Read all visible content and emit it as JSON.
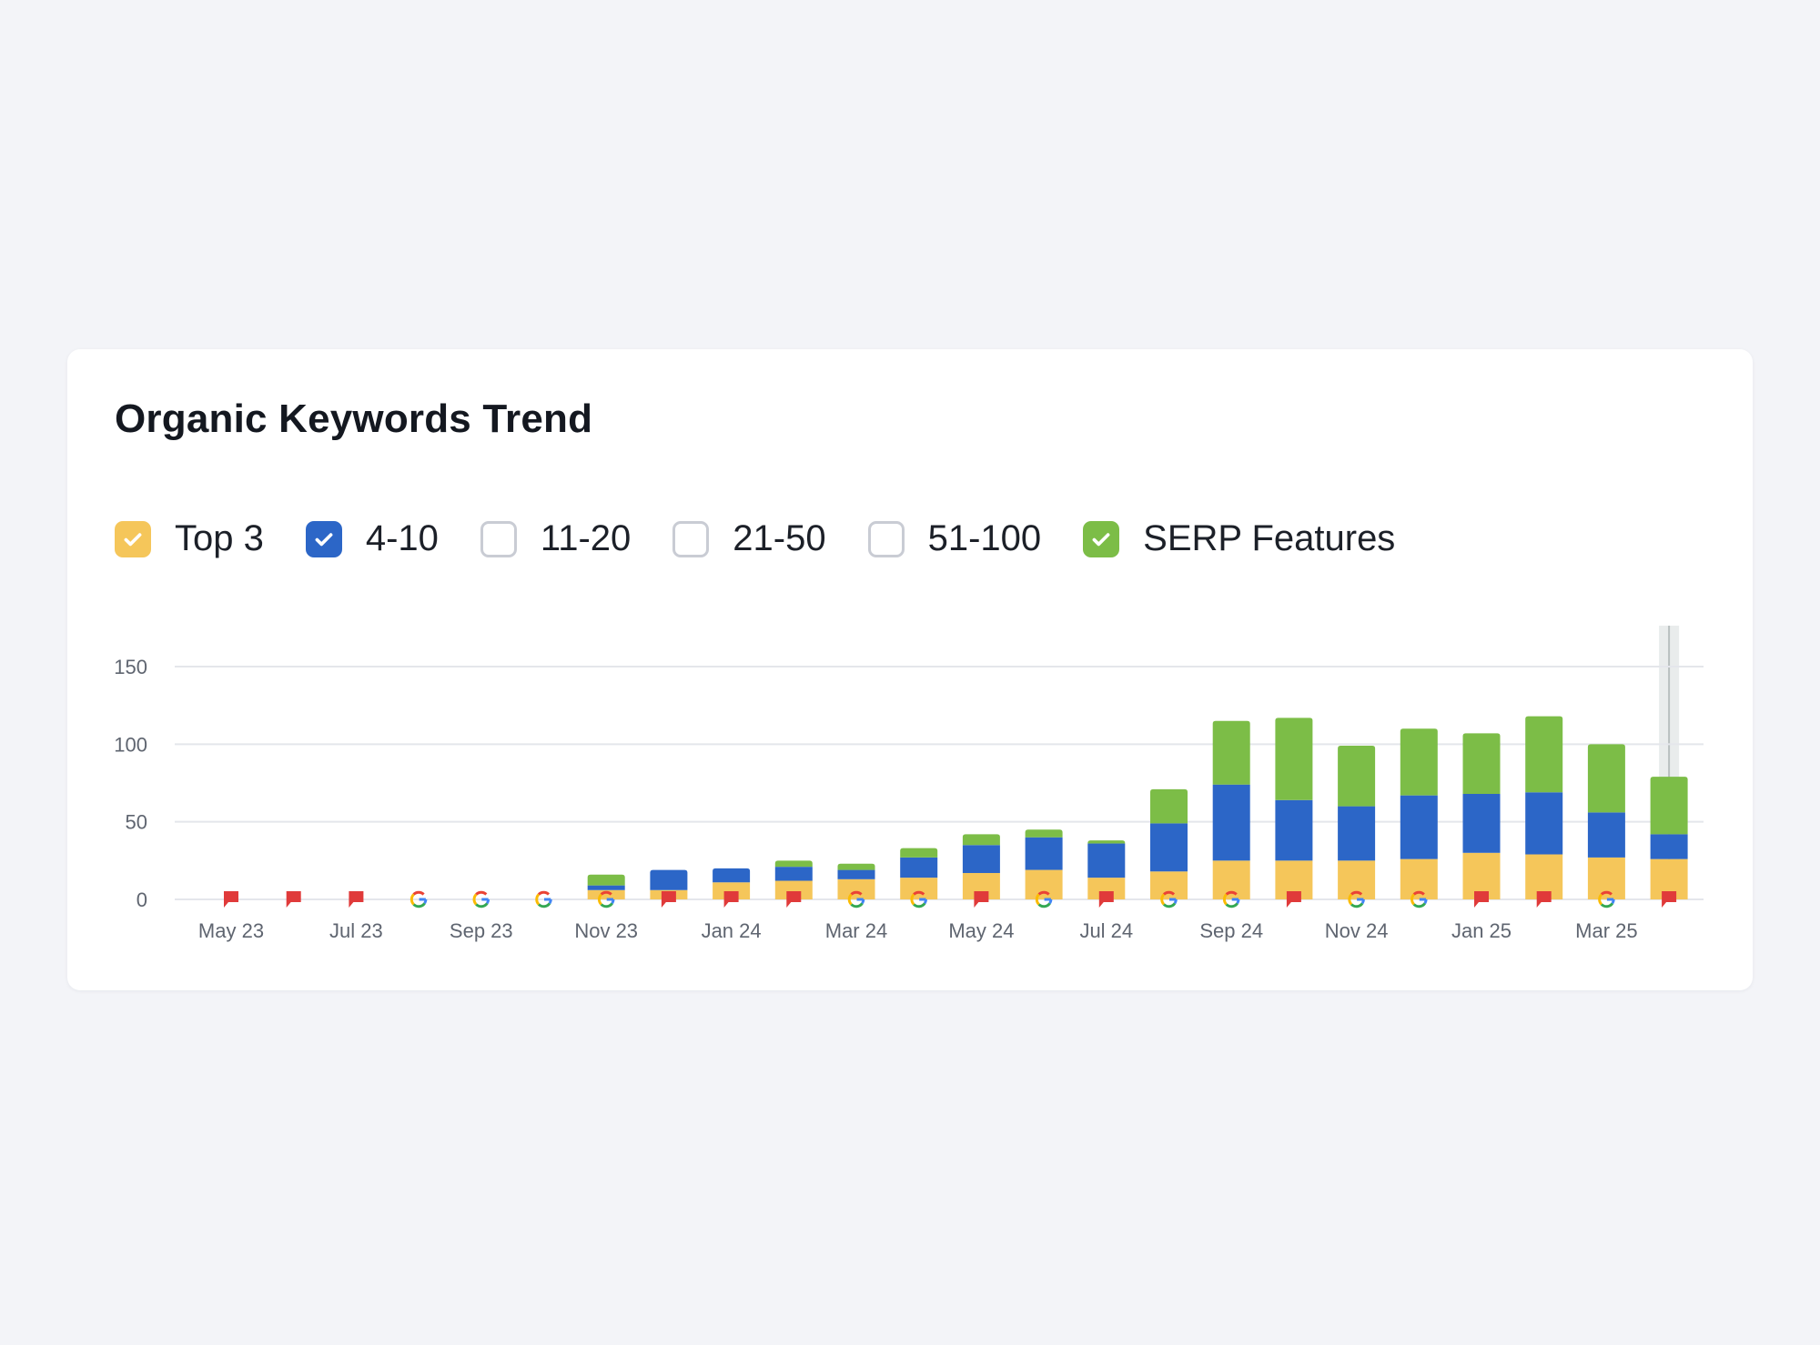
{
  "card": {
    "title": "Organic Keywords Trend"
  },
  "legend": [
    {
      "id": "top3",
      "label": "Top 3",
      "checked": true,
      "color": "#f5c65a"
    },
    {
      "id": "4-10",
      "label": "4-10",
      "checked": true,
      "color": "#2c66c7"
    },
    {
      "id": "11-20",
      "label": "11-20",
      "checked": false,
      "color": "#9aa9d6"
    },
    {
      "id": "21-50",
      "label": "21-50",
      "checked": false,
      "color": "#b9c2d8"
    },
    {
      "id": "51-100",
      "label": "51-100",
      "checked": false,
      "color": "#d5d9e2"
    },
    {
      "id": "serp",
      "label": "SERP Features",
      "checked": true,
      "color": "#7cbd47"
    }
  ],
  "chart_data": {
    "type": "bar",
    "stacked": true,
    "title": "",
    "xlabel": "",
    "ylabel": "",
    "ylim": [
      0,
      165
    ],
    "yticks": [
      0,
      50,
      100,
      150
    ],
    "grid": true,
    "categories": [
      "May 23",
      "Jun 23",
      "Jul 23",
      "Aug 23",
      "Sep 23",
      "Oct 23",
      "Nov 23",
      "Dec 23",
      "Jan 24",
      "Feb 24",
      "Mar 24",
      "Apr 24",
      "May 24",
      "Jun 24",
      "Jul 24",
      "Aug 24",
      "Sep 24",
      "Oct 24",
      "Nov 24",
      "Dec 24",
      "Jan 25",
      "Feb 25",
      "Mar 25",
      "Apr 25"
    ],
    "tick_labels": [
      "May 23",
      "Jul 23",
      "Sep 23",
      "Nov 23",
      "Jan 24",
      "Mar 24",
      "May 24",
      "Jul 24",
      "Sep 24",
      "Nov 24",
      "Jan 25",
      "Mar 25"
    ],
    "series": [
      {
        "name": "Top 3",
        "color": "#f5c65a",
        "values": [
          0,
          0,
          0,
          0,
          0,
          0,
          6,
          6,
          11,
          12,
          13,
          14,
          17,
          19,
          14,
          18,
          25,
          25,
          25,
          26,
          30,
          29,
          27,
          26
        ]
      },
      {
        "name": "4-10",
        "color": "#2c66c7",
        "values": [
          0,
          0,
          0,
          0,
          0,
          0,
          3,
          13,
          9,
          9,
          6,
          13,
          18,
          21,
          22,
          31,
          49,
          39,
          35,
          41,
          38,
          40,
          29,
          16
        ]
      },
      {
        "name": "SERP Features",
        "color": "#7cbd47",
        "values": [
          0,
          0,
          0,
          0,
          0,
          0,
          7,
          0,
          0,
          4,
          4,
          6,
          7,
          5,
          2,
          22,
          41,
          53,
          39,
          43,
          39,
          49,
          44,
          37
        ]
      }
    ],
    "markers": [
      "flag",
      "flag",
      "flag",
      "google",
      "google",
      "google",
      "google",
      "flag",
      "flag",
      "flag",
      "google",
      "google",
      "flag",
      "google",
      "flag",
      "google",
      "google",
      "flag",
      "google",
      "google",
      "flag",
      "flag",
      "google",
      "flag"
    ],
    "highlight_index": 23,
    "colors": {
      "grid": "#e4e6eb",
      "axis_text": "#5f6570",
      "flag": "#e03a3a",
      "highlight": "#d7dcdc"
    }
  }
}
